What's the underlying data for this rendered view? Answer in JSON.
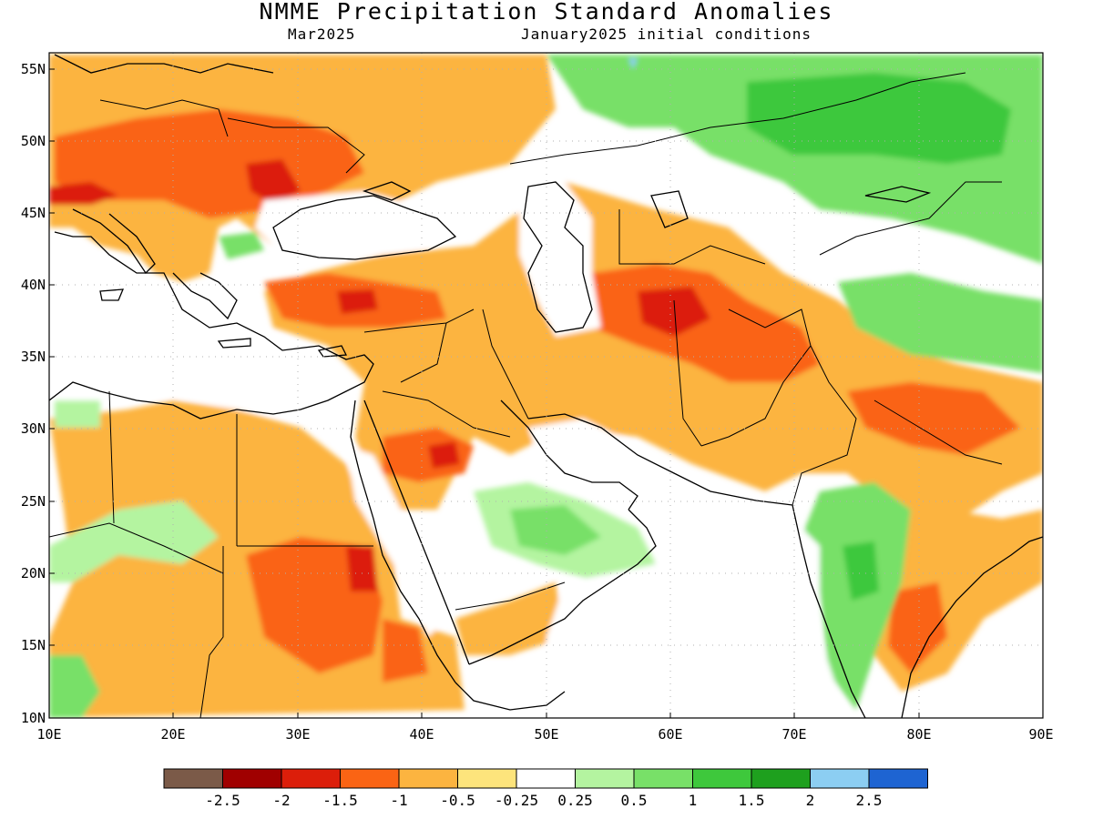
{
  "title": "NMME Precipitation Standard Anomalies",
  "subtitle_left": "Mar2025",
  "subtitle_right": "January2025 initial conditions",
  "lat_labels": [
    "55N",
    "50N",
    "45N",
    "40N",
    "35N",
    "30N",
    "25N",
    "20N",
    "15N",
    "10N"
  ],
  "lon_labels": [
    "10E",
    "20E",
    "30E",
    "40E",
    "50E",
    "60E",
    "70E",
    "80E",
    "90E"
  ],
  "colorbar": {
    "colors": [
      "#7b5a48",
      "#a00000",
      "#dc1e0a",
      "#fa6414",
      "#fcb440",
      "#fde47c",
      "#ffffff",
      "#b4f4a0",
      "#78e068",
      "#3ec83c",
      "#1ea01e",
      "#8ccef2",
      "#1e64d2"
    ],
    "labels": [
      "-2.5",
      "-2",
      "-1.5",
      "-1",
      "-0.5",
      "-0.25",
      "0.25",
      "0.5",
      "1",
      "1.5",
      "2",
      "2.5"
    ]
  },
  "palette": {
    "land_outline": "#000000",
    "grid": "#b0b0b0"
  }
}
